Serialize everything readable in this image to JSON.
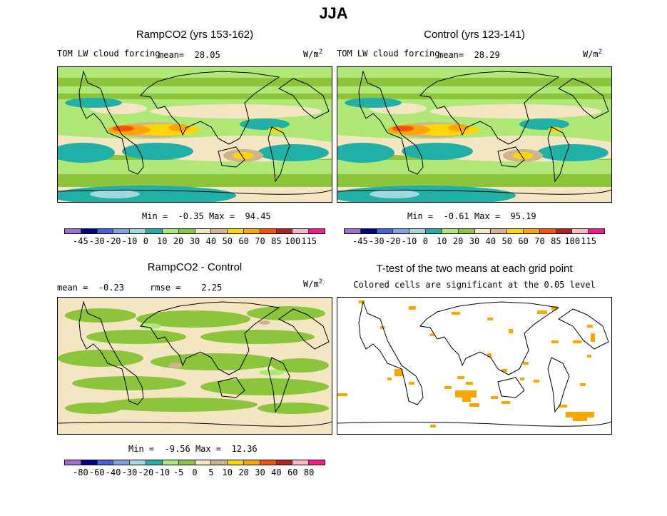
{
  "figure": {
    "title": "JJA"
  },
  "colors": {
    "full_palette": [
      "#9e6ed2",
      "#00008c",
      "#3f64d8",
      "#7fa0e6",
      "#a0d8e0",
      "#20b0a8",
      "#b0e878",
      "#8cc43c",
      "#f5e6c3",
      "#d2b48c",
      "#ffd700",
      "#ffa500",
      "#ff5000",
      "#b41e1e",
      "#ffb4c8",
      "#ff1493"
    ],
    "diff_palette": [
      "#9e6ed2",
      "#00008c",
      "#3f64d8",
      "#7fa0e6",
      "#a0d8e0",
      "#20b0a8",
      "#b0e878",
      "#8cc43c",
      "#f5e6c3",
      "#d2b48c",
      "#ffd700",
      "#ffa500",
      "#ff5000",
      "#b41e1e",
      "#ffb4c8",
      "#ff1493"
    ],
    "coast": "#000000",
    "signif": "#ffa500"
  },
  "panels": {
    "ramp": {
      "title": "RampCO2 (yrs 153-162)",
      "variable": "TOM LW cloud forcing",
      "mean_label": "mean=",
      "mean_value": "28.05",
      "units": "W/m",
      "units_exp": "2",
      "min_label": "Min =",
      "min_value": "-0.35",
      "max_label": "Max =",
      "max_value": "94.45"
    },
    "control": {
      "title": "Control (yrs 123-141)",
      "variable": "TOM LW cloud forcing",
      "mean_label": "mean=",
      "mean_value": "28.29",
      "units": "W/m",
      "units_exp": "2",
      "min_label": "Min =",
      "min_value": "-0.61",
      "max_label": "Max =",
      "max_value": "95.19"
    },
    "diff": {
      "title": "RampCO2 - Control",
      "mean_label": "mean =",
      "mean_value": "-0.23",
      "rmse_label": "rmse =",
      "rmse_value": "2.25",
      "units": "W/m",
      "units_exp": "2",
      "min_label": "Min =",
      "min_value": "-9.56",
      "max_label": "Max =",
      "max_value": "12.36"
    },
    "ttest": {
      "title": "T-test of the two means at each grid point",
      "subtitle": "Colored cells are significant at the 0.05 level"
    }
  },
  "chart_data": [
    {
      "type": "heatmap",
      "title": "RampCO2 (yrs 153-162)",
      "variable": "TOM LW cloud forcing",
      "units": "W/m2",
      "mean": 28.05,
      "min": -0.35,
      "max": 94.45,
      "contour_levels": [
        -45,
        -30,
        -20,
        -10,
        0,
        10,
        20,
        30,
        40,
        50,
        60,
        70,
        85,
        100,
        115
      ],
      "colorbar_tick_labels": [
        "-45",
        "-30",
        "-20",
        "-10",
        "0",
        "10",
        "20",
        "30",
        "40",
        "50",
        "60",
        "70",
        "85",
        "100",
        "115"
      ]
    },
    {
      "type": "heatmap",
      "title": "Control (yrs 123-141)",
      "variable": "TOM LW cloud forcing",
      "units": "W/m2",
      "mean": 28.29,
      "min": -0.61,
      "max": 95.19,
      "contour_levels": [
        -45,
        -30,
        -20,
        -10,
        0,
        10,
        20,
        30,
        40,
        50,
        60,
        70,
        85,
        100,
        115
      ],
      "colorbar_tick_labels": [
        "-45",
        "-30",
        "-20",
        "-10",
        "0",
        "10",
        "20",
        "30",
        "40",
        "50",
        "60",
        "70",
        "85",
        "100",
        "115"
      ]
    },
    {
      "type": "heatmap",
      "title": "RampCO2 - Control",
      "units": "W/m2",
      "mean": -0.23,
      "rmse": 2.25,
      "min": -9.56,
      "max": 12.36,
      "contour_levels": [
        -80,
        -60,
        -40,
        -30,
        -20,
        -10,
        -5,
        0,
        5,
        10,
        20,
        30,
        40,
        60,
        80
      ],
      "colorbar_tick_labels": [
        "-80",
        "-60",
        "-40",
        "-30",
        "-20",
        "-10",
        "-5",
        "0",
        "5",
        "10",
        "20",
        "30",
        "40",
        "60",
        "80"
      ]
    },
    {
      "type": "heatmap",
      "title": "T-test of the two means at each grid point",
      "subtitle": "Colored cells are significant at the 0.05 level"
    }
  ]
}
